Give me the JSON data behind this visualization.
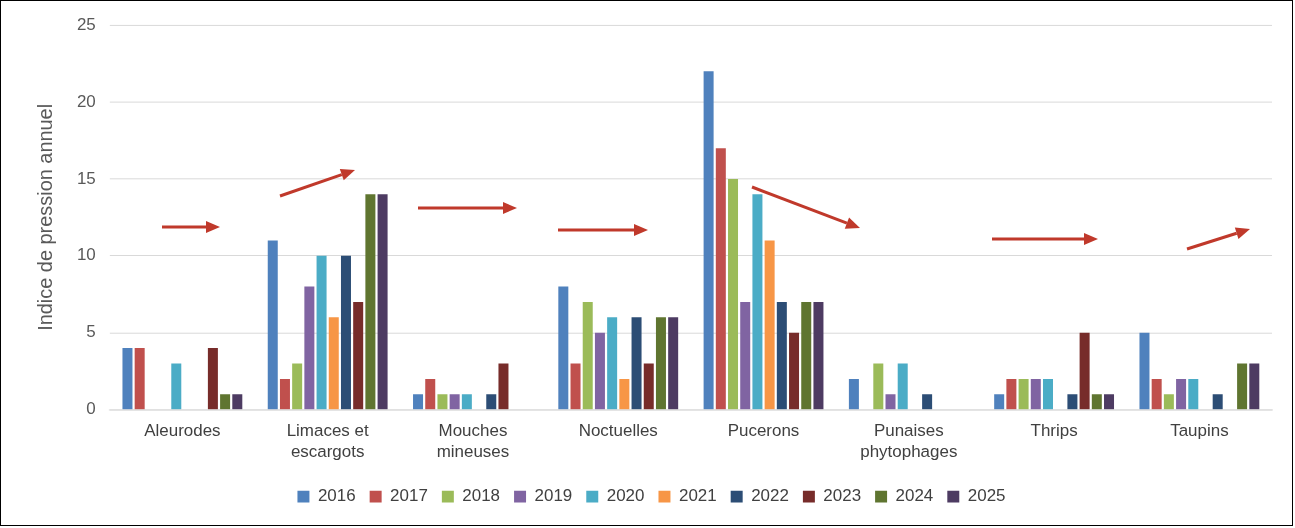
{
  "chart_data": {
    "type": "bar",
    "ylabel": "Indice de pression annuel",
    "categories": [
      "Aleurodes",
      "Limaces et escargots",
      "Mouches mineuses",
      "Noctuelles",
      "Pucerons",
      "Punaises phytophages",
      "Thrips",
      "Taupins"
    ],
    "series": [
      {
        "name": "2016",
        "color": "#4f81bd",
        "values": [
          4,
          11,
          1,
          8,
          22,
          2,
          1,
          5
        ]
      },
      {
        "name": "2017",
        "color": "#c0504d",
        "values": [
          4,
          2,
          2,
          3,
          17,
          0,
          2,
          2
        ]
      },
      {
        "name": "2018",
        "color": "#9bbb59",
        "values": [
          0,
          3,
          1,
          7,
          15,
          3,
          2,
          1
        ]
      },
      {
        "name": "2019",
        "color": "#8064a2",
        "values": [
          0,
          8,
          1,
          5,
          7,
          1,
          2,
          2
        ]
      },
      {
        "name": "2020",
        "color": "#4bacc6",
        "values": [
          3,
          10,
          1,
          6,
          14,
          3,
          2,
          2
        ]
      },
      {
        "name": "2021",
        "color": "#f79646",
        "values": [
          0,
          6,
          0,
          2,
          11,
          0,
          0,
          0
        ]
      },
      {
        "name": "2022",
        "color": "#2c4d75",
        "values": [
          0,
          10,
          1,
          6,
          7,
          1,
          1,
          1
        ]
      },
      {
        "name": "2023",
        "color": "#772c2a",
        "values": [
          4,
          7,
          3,
          3,
          5,
          0,
          5,
          0
        ]
      },
      {
        "name": "2024",
        "color": "#5f7530",
        "values": [
          1,
          14,
          0,
          6,
          7,
          0,
          1,
          3
        ]
      },
      {
        "name": "2025",
        "color": "#4d3b62",
        "values": [
          1,
          14,
          0,
          6,
          7,
          0,
          1,
          3
        ]
      }
    ],
    "ylim": [
      0,
      25
    ],
    "yticks": [
      0,
      5,
      10,
      15,
      20,
      25
    ],
    "grid": "y",
    "legend": "bottom"
  }
}
